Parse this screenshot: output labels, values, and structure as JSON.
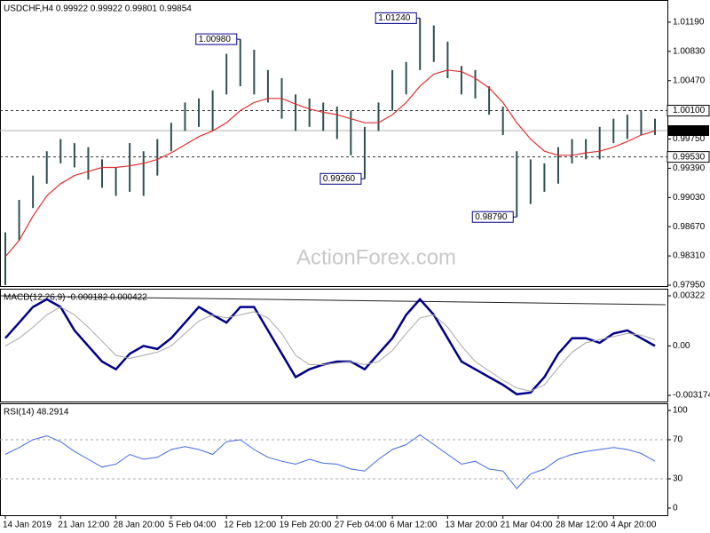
{
  "chart_data": [
    {
      "type": "range-bar",
      "title": "USDCHF,H4  0.99922 0.99922 0.99801 0.99854",
      "watermark": "ActionForex.com",
      "categories": [
        "14 Jan 2019",
        null,
        null,
        null,
        "21 Jan 12:00",
        null,
        null,
        null,
        "28 Jan 20:00",
        null,
        null,
        null,
        "5 Feb 04:00",
        null,
        null,
        null,
        "12 Feb 12:00",
        null,
        null,
        null,
        "19 Feb 20:00",
        null,
        null,
        null,
        "27 Feb 04:00",
        null,
        null,
        null,
        "6 Mar 12:00",
        null,
        null,
        null,
        "13 Mar 20:00",
        null,
        null,
        null,
        "21 Mar 04:00",
        null,
        null,
        null,
        "28 Mar 12:00",
        null,
        null,
        null,
        "4 Apr 20:00",
        null,
        null,
        null
      ],
      "color": "#2f4f4f",
      "high": [
        0.986,
        0.99,
        0.993,
        0.996,
        0.9975,
        0.997,
        0.9965,
        0.995,
        0.994,
        0.997,
        0.996,
        0.9975,
        0.9995,
        1.002,
        1.0025,
        1.0035,
        1.008,
        1.0098,
        1.0085,
        1.006,
        1.005,
        1.003,
        1.0025,
        1.002,
        1.0015,
        1.001,
        0.999,
        1.002,
        1.006,
        1.007,
        1.0124,
        1.0115,
        1.0095,
        1.0065,
        1.006,
        1.004,
        1.0015,
        0.996,
        0.995,
        0.9945,
        0.9965,
        0.9975,
        0.9975,
        0.999,
        1.0,
        1.0005,
        1.001,
        1.0
      ],
      "low": [
        0.9795,
        0.985,
        0.989,
        0.992,
        0.9945,
        0.994,
        0.9925,
        0.9915,
        0.9905,
        0.991,
        0.9905,
        0.993,
        0.996,
        0.9985,
        0.999,
        0.9985,
        1.003,
        1.004,
        1.003,
        1.002,
        1.0,
        0.9985,
        0.999,
        0.9985,
        0.9975,
        0.9955,
        0.9926,
        0.9985,
        1.001,
        1.003,
        1.006,
        1.007,
        1.005,
        1.003,
        1.0025,
        1.0005,
        0.998,
        0.9879,
        0.9895,
        0.991,
        0.992,
        0.9945,
        0.995,
        0.995,
        0.997,
        0.9975,
        0.998,
        0.998
      ],
      "overlay": {
        "color": "#e03030",
        "values": [
          0.983,
          0.985,
          0.988,
          0.9905,
          0.992,
          0.993,
          0.9935,
          0.994,
          0.994,
          0.9942,
          0.9945,
          0.995,
          0.9958,
          0.9968,
          0.9978,
          0.9985,
          0.9995,
          1.001,
          1.002,
          1.0025,
          1.0025,
          1.0018,
          1.0012,
          1.0008,
          1.0005,
          1.0,
          0.9995,
          0.9995,
          1.0005,
          1.002,
          1.004,
          1.0055,
          1.006,
          1.0058,
          1.005,
          1.0038,
          1.002,
          0.9995,
          0.9975,
          0.996,
          0.9955,
          0.9955,
          0.9958,
          0.996,
          0.9965,
          0.9972,
          0.998,
          0.9985
        ]
      },
      "ylim": [
        0.97939,
        1.01452
      ],
      "yticks": [
        {
          "value": 1.0119,
          "label": "1.01190"
        },
        {
          "value": 1.0083,
          "label": "1.00830"
        },
        {
          "value": 1.0047,
          "label": "1.00470"
        },
        {
          "value": 0.9975,
          "label": "0.99750"
        },
        {
          "value": 0.9939,
          "label": "0.99390"
        },
        {
          "value": 0.9903,
          "label": "0.99030"
        },
        {
          "value": 0.9867,
          "label": "0.98670"
        },
        {
          "value": 0.9831,
          "label": "0.98310"
        },
        {
          "value": 0.9795,
          "label": "0.97950"
        }
      ],
      "levels": [
        {
          "value": 1.001,
          "label": "1.00100"
        },
        {
          "value": 0.9953,
          "label": "0.99530"
        }
      ],
      "current": {
        "value": 0.99854,
        "label": "0.99854"
      },
      "annotations": [
        {
          "value": 1.0098,
          "label": "1.00980"
        },
        {
          "value": 1.0124,
          "label": "1.01240"
        },
        {
          "value": 0.9926,
          "label": "0.99260"
        },
        {
          "value": 0.9879,
          "label": "0.98790"
        }
      ]
    },
    {
      "type": "macd",
      "title": "MACD(12,26,9) -0.000182 0.000422",
      "series": [
        {
          "color": "#00008b",
          "values": [
            0.0005,
            0.0015,
            0.0025,
            0.003,
            0.0025,
            0.001,
            0.0,
            -0.001,
            -0.0015,
            -0.0005,
            0.0,
            -0.0002,
            0.0005,
            0.0015,
            0.0025,
            0.002,
            0.0015,
            0.0025,
            0.0025,
            0.001,
            -0.0005,
            -0.002,
            -0.0015,
            -0.0012,
            -0.001,
            -0.001,
            -0.0015,
            -0.0005,
            0.0005,
            0.002,
            0.003,
            0.002,
            0.0005,
            -0.001,
            -0.0015,
            -0.002,
            -0.0025,
            -0.0031,
            -0.003,
            -0.002,
            -0.0005,
            0.0005,
            0.0005,
            0.0002,
            0.0008,
            0.001,
            0.0005,
            0.0
          ]
        },
        {
          "color": "#a8a8a8",
          "values": [
            0.0,
            0.0005,
            0.0012,
            0.002,
            0.0025,
            0.002,
            0.0012,
            0.0003,
            -0.0006,
            -0.0008,
            -0.0006,
            -0.0004,
            0.0,
            0.0008,
            0.0016,
            0.002,
            0.0018,
            0.002,
            0.0022,
            0.0018,
            0.0008,
            -0.0006,
            -0.0012,
            -0.0012,
            -0.0011,
            -0.001,
            -0.0012,
            -0.001,
            -0.0003,
            0.0008,
            0.0018,
            0.002,
            0.0012,
            0.0,
            -0.001,
            -0.0016,
            -0.0022,
            -0.0027,
            -0.0029,
            -0.0025,
            -0.0014,
            -0.0004,
            0.0002,
            0.0004,
            0.0006,
            0.0008,
            0.0007,
            0.0004
          ]
        }
      ],
      "ylim": [
        -0.00357,
        0.00362
      ],
      "yticks": [
        0.00322,
        {
          "value": 0,
          "label": "0.00"
        },
        -0.003174
      ]
    },
    {
      "type": "line",
      "title": "RSI(14) 48.2914",
      "series": [
        {
          "color": "#4169e1",
          "values": [
            55,
            62,
            70,
            74,
            68,
            58,
            50,
            42,
            45,
            55,
            50,
            52,
            60,
            63,
            60,
            55,
            68,
            70,
            60,
            52,
            48,
            45,
            50,
            46,
            45,
            40,
            38,
            50,
            60,
            65,
            75,
            65,
            55,
            45,
            48,
            40,
            38,
            20,
            35,
            40,
            50,
            55,
            58,
            60,
            62,
            60,
            56,
            48
          ]
        }
      ],
      "ylim": [
        -7.3,
        106.4
      ],
      "yticks": [
        100,
        70,
        30,
        0
      ],
      "levels": [
        70,
        30
      ]
    }
  ]
}
